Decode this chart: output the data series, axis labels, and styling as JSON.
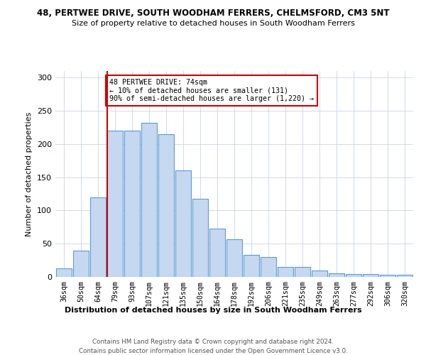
{
  "title1": "48, PERTWEE DRIVE, SOUTH WOODHAM FERRERS, CHELMSFORD, CM3 5NT",
  "title2": "Size of property relative to detached houses in South Woodham Ferrers",
  "xlabel": "Distribution of detached houses by size in South Woodham Ferrers",
  "ylabel": "Number of detached properties",
  "categories": [
    "36sqm",
    "50sqm",
    "64sqm",
    "79sqm",
    "93sqm",
    "107sqm",
    "121sqm",
    "135sqm",
    "150sqm",
    "164sqm",
    "178sqm",
    "192sqm",
    "206sqm",
    "221sqm",
    "235sqm",
    "249sqm",
    "263sqm",
    "277sqm",
    "292sqm",
    "306sqm",
    "320sqm"
  ],
  "values": [
    13,
    40,
    120,
    220,
    220,
    232,
    215,
    160,
    118,
    73,
    57,
    33,
    30,
    15,
    15,
    10,
    5,
    4,
    4,
    3,
    3
  ],
  "bar_color": "#c5d8f0",
  "bar_edge_color": "#5b9bd5",
  "vline_x": 2.55,
  "vline_color": "#cc0000",
  "annotation_text": "48 PERTWEE DRIVE: 74sqm\n← 10% of detached houses are smaller (131)\n90% of semi-detached houses are larger (1,220) →",
  "annotation_box_color": "#ffffff",
  "annotation_box_edge_color": "#cc0000",
  "ylim": [
    0,
    310
  ],
  "yticks": [
    0,
    50,
    100,
    150,
    200,
    250,
    300
  ],
  "footer1": "Contains HM Land Registry data © Crown copyright and database right 2024.",
  "footer2": "Contains public sector information licensed under the Open Government Licence v3.0.",
  "bg_color": "#ffffff",
  "grid_color": "#c8d4e8"
}
